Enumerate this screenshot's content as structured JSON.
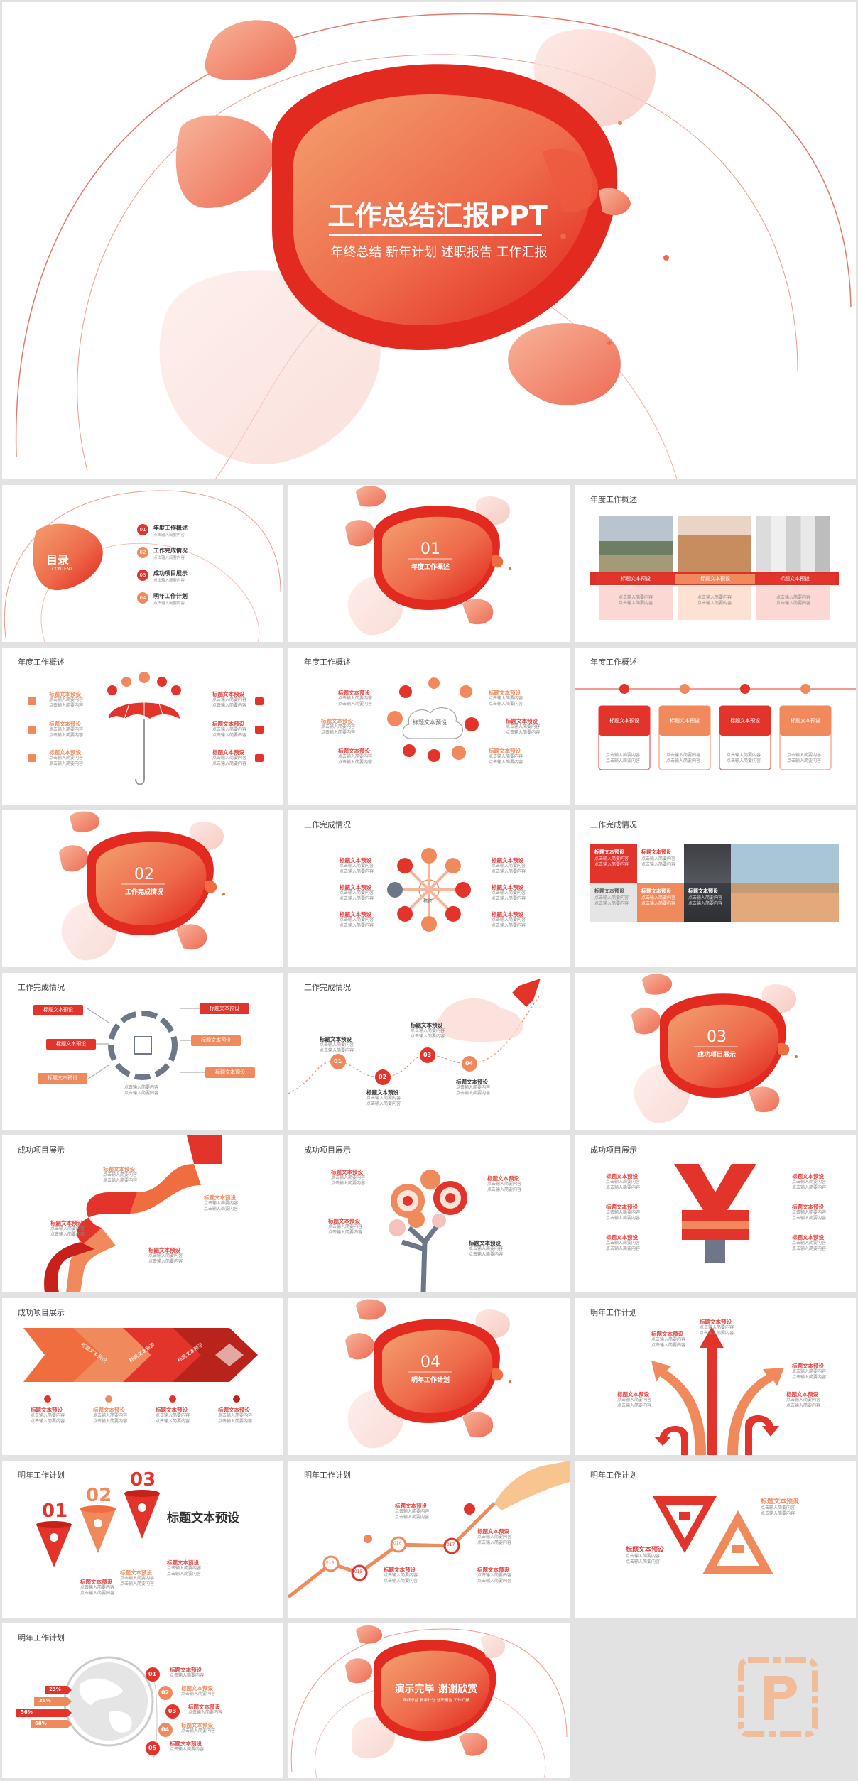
{
  "colors": {
    "red": "#e3342c",
    "orange": "#f08a5d",
    "pink": "#f6c2bd",
    "grey": "#6d7788",
    "bg": "#e2e2e2"
  },
  "cover": {
    "title": "工作总结汇报PPT",
    "subtitle": "年终总结  新年计划  述职报告  工作汇报"
  },
  "toc": {
    "title": "目录",
    "subtitle": "CONTENT",
    "items": [
      {
        "num": "01",
        "label": "年度工作概述",
        "sub": "点击输入简要内容"
      },
      {
        "num": "02",
        "label": "工作完成情况",
        "sub": "点击输入简要内容"
      },
      {
        "num": "03",
        "label": "成功项目展示",
        "sub": "点击输入简要内容"
      },
      {
        "num": "04",
        "label": "明年工作计划",
        "sub": "点击输入简要内容"
      }
    ]
  },
  "sections": [
    {
      "num": "01",
      "label": "年度工作概述"
    },
    {
      "num": "02",
      "label": "工作完成情况"
    },
    {
      "num": "03",
      "label": "成功项目展示"
    },
    {
      "num": "04",
      "label": "明年工作计划"
    }
  ],
  "slide_titles": {
    "s3": "年度工作概述",
    "s4": "年度工作概述",
    "s5": "年度工作概述",
    "s6": "年度工作概述",
    "s8": "工作完成情况",
    "s9": "工作完成情况",
    "s10": "工作完成情况",
    "s11": "工作完成情况",
    "s13": "成功项目展示",
    "s14": "成功项目展示",
    "s15": "成功项目展示",
    "s16": "成功项目展示",
    "s18": "明年工作计划",
    "s19": "明年工作计划",
    "s20": "明年工作计划",
    "s21": "明年工作计划",
    "s22": "明年工作计划"
  },
  "common": {
    "heading": "标题文本预设",
    "body": "点击输入简要内容\n点击输入简要内容",
    "body_one": "点击输入简要内容",
    "small_heading": "标题文本预设",
    "center": "标题"
  },
  "s20": {
    "years": [
      "2014",
      "2015",
      "2016",
      "2017"
    ]
  },
  "s21": {
    "nums": [
      "01",
      "02",
      "03"
    ],
    "big": "标题文本预设"
  },
  "s23": {
    "pcts": [
      "23%",
      "35%",
      "56%",
      "68%"
    ],
    "nums": [
      "01",
      "02",
      "03",
      "04",
      "05"
    ]
  },
  "ending": {
    "title": "演示完毕 谢谢欣赏",
    "subtitle": "年终总结  新年计划  述职报告  工作汇报"
  }
}
